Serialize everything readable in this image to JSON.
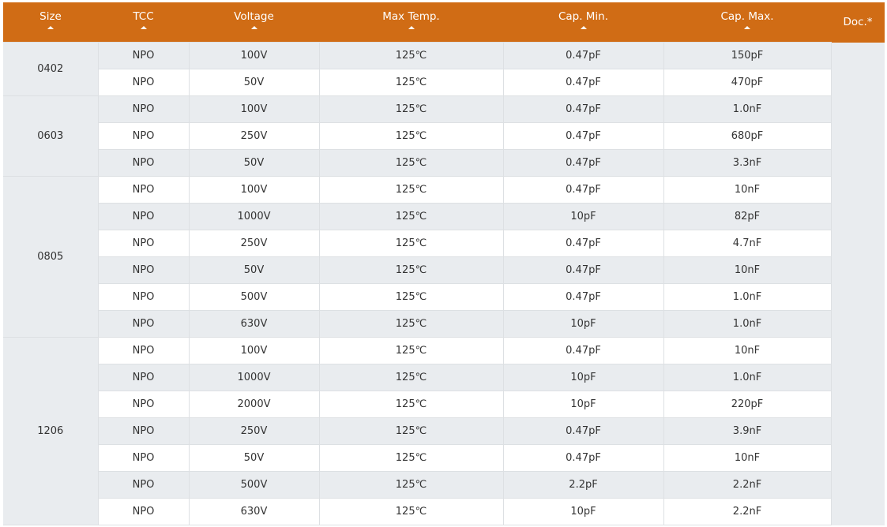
{
  "colors": {
    "header": "#d06c15",
    "row_alt": "#e9ecef"
  },
  "headers": [
    {
      "label": "Size",
      "sortable": true
    },
    {
      "label": "TCC",
      "sortable": true
    },
    {
      "label": "Voltage",
      "sortable": true
    },
    {
      "label": "Max Temp.",
      "sortable": true
    },
    {
      "label": "Cap. Min.",
      "sortable": true
    },
    {
      "label": "Cap. Max.",
      "sortable": true
    },
    {
      "label": "Doc.*",
      "sortable": false
    }
  ],
  "groups": [
    {
      "size": "0402",
      "rows": [
        [
          "NPO",
          "100V",
          "125℃",
          "0.47pF",
          "150pF"
        ],
        [
          "NPO",
          "50V",
          "125℃",
          "0.47pF",
          "470pF"
        ]
      ]
    },
    {
      "size": "0603",
      "rows": [
        [
          "NPO",
          "100V",
          "125℃",
          "0.47pF",
          "1.0nF"
        ],
        [
          "NPO",
          "250V",
          "125℃",
          "0.47pF",
          "680pF"
        ],
        [
          "NPO",
          "50V",
          "125℃",
          "0.47pF",
          "3.3nF"
        ]
      ]
    },
    {
      "size": "0805",
      "rows": [
        [
          "NPO",
          "100V",
          "125℃",
          "0.47pF",
          "10nF"
        ],
        [
          "NPO",
          "1000V",
          "125℃",
          "10pF",
          "82pF"
        ],
        [
          "NPO",
          "250V",
          "125℃",
          "0.47pF",
          "4.7nF"
        ],
        [
          "NPO",
          "50V",
          "125℃",
          "0.47pF",
          "10nF"
        ],
        [
          "NPO",
          "500V",
          "125℃",
          "0.47pF",
          "1.0nF"
        ],
        [
          "NPO",
          "630V",
          "125℃",
          "10pF",
          "1.0nF"
        ]
      ]
    },
    {
      "size": "1206",
      "rows": [
        [
          "NPO",
          "100V",
          "125℃",
          "0.47pF",
          "10nF"
        ],
        [
          "NPO",
          "1000V",
          "125℃",
          "10pF",
          "1.0nF"
        ],
        [
          "NPO",
          "2000V",
          "125℃",
          "10pF",
          "220pF"
        ],
        [
          "NPO",
          "250V",
          "125℃",
          "0.47pF",
          "3.9nF"
        ],
        [
          "NPO",
          "50V",
          "125℃",
          "0.47pF",
          "10nF"
        ],
        [
          "NPO",
          "500V",
          "125℃",
          "2.2pF",
          "2.2nF"
        ],
        [
          "NPO",
          "630V",
          "125℃",
          "10pF",
          "2.2nF"
        ]
      ]
    }
  ]
}
